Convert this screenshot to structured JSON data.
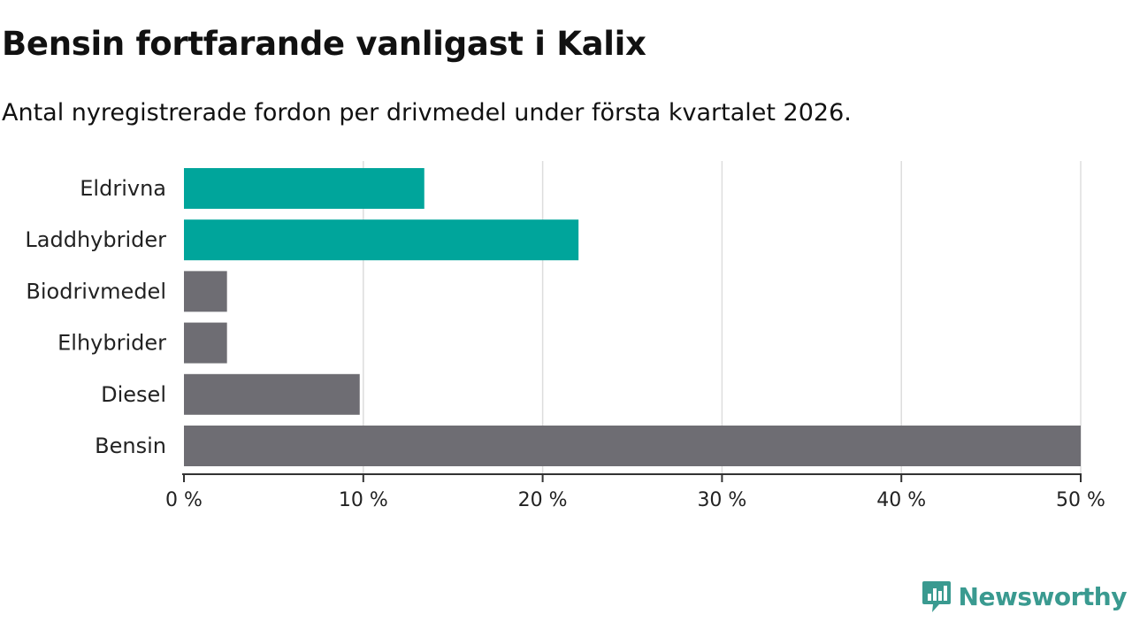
{
  "chart_data": {
    "type": "bar",
    "orientation": "horizontal",
    "title": "Bensin fortfarande vanligast i Kalix",
    "subtitle": "Antal nyregistrerade fordon per drivmedel under första kvartalet 2026.",
    "categories": [
      "Eldrivna",
      "Laddhybrider",
      "Biodrivmedel",
      "Elhybrider",
      "Diesel",
      "Bensin"
    ],
    "values": [
      13.4,
      22.0,
      2.4,
      2.4,
      9.8,
      50.0
    ],
    "colors": [
      "#00a59b",
      "#00a59b",
      "#6e6d73",
      "#6e6d73",
      "#6e6d73",
      "#6e6d73"
    ],
    "xlim": [
      0,
      50
    ],
    "xticks": [
      0,
      10,
      20,
      30,
      40,
      50
    ],
    "xtick_labels": [
      "0 %",
      "10 %",
      "20 %",
      "30 %",
      "40 %",
      "50 %"
    ],
    "grid": true,
    "xlabel": "",
    "ylabel": ""
  },
  "brand": {
    "name": "Newsworthy",
    "icon": "newsworthy-logo-icon",
    "color": "#3a9a90"
  }
}
